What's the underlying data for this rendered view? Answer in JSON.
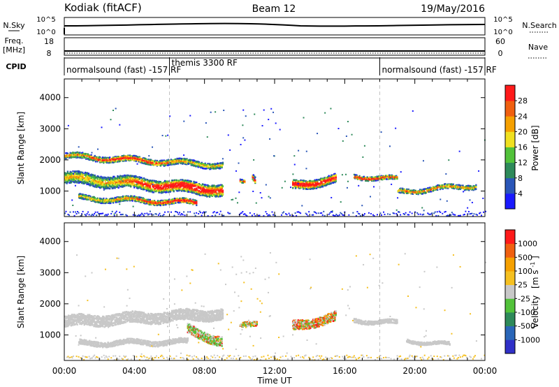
{
  "header": {
    "title": "Kodiak (fitACF)",
    "beam": "Beam 12",
    "date": "19/May/2016"
  },
  "strip_sky": {
    "left_label": "N.Sky",
    "right_label": "N.Search",
    "left_ticks": [
      "10^5",
      "10^0"
    ],
    "right_ticks": [
      "10^5",
      "10^0"
    ]
  },
  "strip_freq": {
    "left_label": "Freq.",
    "left_unit": "[MHz]",
    "right_label": "Nave",
    "left_ticks": [
      "18",
      "8"
    ],
    "right_ticks": [
      "60",
      "0"
    ]
  },
  "strip_cpid": {
    "label": "CPID",
    "segments": [
      {
        "text": "normalsound (fast) -157 RF",
        "start_hour": 0
      },
      {
        "text": "themis 3300 RF",
        "start_hour": 6
      },
      {
        "text": "normalsound (fast) -157 RF",
        "start_hour": 18
      }
    ]
  },
  "time_axis": {
    "label": "Time UT",
    "ticks": [
      "00:00",
      "04:00",
      "08:00",
      "12:00",
      "16:00",
      "20:00",
      "00:00"
    ]
  },
  "colors": {
    "power": [
      "#1a1aff",
      "#2a56b8",
      "#2e8a5a",
      "#52c23a",
      "#f0e020",
      "#f5a000",
      "#f06010",
      "#ff1a1a"
    ],
    "velocity": [
      "#3030c8",
      "#2a66b8",
      "#2e8a5a",
      "#52c23a",
      "#c8c8c8",
      "#f5c020",
      "#f5a000",
      "#f06010",
      "#ff1a1a"
    ]
  },
  "chart_data": [
    {
      "type": "heatmap",
      "ylabel": "Slant Range [km]",
      "ylim": [
        180,
        4600
      ],
      "xlim": [
        0,
        24
      ],
      "y_ticks": [
        "4000",
        "3000",
        "2000",
        "1000"
      ],
      "colorbar_label": "Power [dB]",
      "colorbar_ticks": [
        "28",
        "24",
        "20",
        "16",
        "12",
        "8",
        "4"
      ],
      "bands": [
        {
          "t0": 0.0,
          "t1": 9.0,
          "r0": 1450,
          "r1": 1050,
          "w": 380,
          "core": 0.85,
          "peak_t": 6.8
        },
        {
          "t0": 0.0,
          "t1": 9.0,
          "r0": 2150,
          "r1": 1850,
          "w": 180,
          "core": 0.55,
          "peak_t": 3.5
        },
        {
          "t0": 0.8,
          "t1": 7.5,
          "r0": 800,
          "r1": 650,
          "w": 160,
          "core": 0.7,
          "peak_t": 6.5
        },
        {
          "t0": 10.0,
          "t1": 10.3,
          "r0": 1300,
          "r1": 1300,
          "w": 100,
          "core": 0.4,
          "peak_t": 10.1
        },
        {
          "t0": 10.7,
          "t1": 10.9,
          "r0": 1500,
          "r1": 1400,
          "w": 200,
          "core": 0.5,
          "peak_t": 10.8
        },
        {
          "t0": 13.0,
          "t1": 15.5,
          "r0": 1200,
          "r1": 1400,
          "w": 280,
          "core": 0.75,
          "peak_t": 13.8
        },
        {
          "t0": 16.5,
          "t1": 19.0,
          "r0": 1500,
          "r1": 1400,
          "w": 130,
          "core": 0.55,
          "peak_t": 17.5
        },
        {
          "t0": 19.0,
          "t1": 23.5,
          "r0": 1000,
          "r1": 1200,
          "w": 150,
          "core": 0.2,
          "peak_t": 20.0
        }
      ]
    },
    {
      "type": "heatmap",
      "ylabel": "Slant Range [km]",
      "ylim": [
        180,
        4600
      ],
      "xlim": [
        0,
        24
      ],
      "y_ticks": [
        "4000",
        "3000",
        "2000",
        "1000"
      ],
      "colorbar_label": "Velocity",
      "colorbar_unit": "[m s",
      "colorbar_unit_exp": "-1",
      "colorbar_unit_close": "]",
      "colorbar_ticks": [
        "1000",
        "500",
        "100",
        "25",
        "-25",
        "-100",
        "-500",
        "-1000"
      ],
      "bands": [
        {
          "t0": 0.0,
          "t1": 9.0,
          "r0": 1450,
          "r1": 1700,
          "w": 350,
          "core": 0.0,
          "peak_t": 6.0
        },
        {
          "t0": 0.8,
          "t1": 7.0,
          "r0": 750,
          "r1": 800,
          "w": 160,
          "core": 0.0,
          "peak_t": 3.0
        },
        {
          "t0": 7.0,
          "t1": 9.0,
          "r0": 1200,
          "r1": 800,
          "w": 300,
          "core": 0.45,
          "peak_t": 8.0
        },
        {
          "t0": 13.0,
          "t1": 15.5,
          "r0": 1300,
          "r1": 1600,
          "w": 300,
          "core": 0.85,
          "peak_t": 14.5
        },
        {
          "t0": 10.0,
          "t1": 11.0,
          "r0": 1300,
          "r1": 1450,
          "w": 150,
          "core": 0.6,
          "peak_t": 10.5
        },
        {
          "t0": 16.5,
          "t1": 19.0,
          "r0": 1500,
          "r1": 1400,
          "w": 130,
          "core": 0.0,
          "peak_t": 17.5
        },
        {
          "t0": 19.5,
          "t1": 22.0,
          "r0": 850,
          "r1": 700,
          "w": 100,
          "core": 0.0,
          "peak_t": 20.5
        }
      ]
    }
  ]
}
